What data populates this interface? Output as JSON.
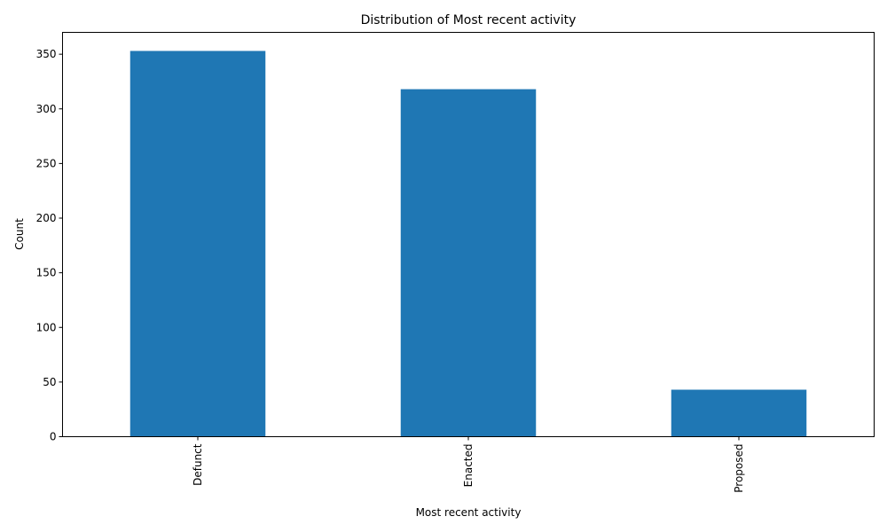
{
  "chart_data": {
    "type": "bar",
    "title": "Distribution of Most recent activity",
    "xlabel": "Most recent activity",
    "ylabel": "Count",
    "categories": [
      "Defunct",
      "Enacted",
      "Proposed"
    ],
    "values": [
      353,
      318,
      43
    ],
    "ylim": [
      0,
      370
    ],
    "yticks": [
      0,
      50,
      100,
      150,
      200,
      250,
      300,
      350
    ],
    "grid": false,
    "bar_color": "#1f77b4"
  }
}
